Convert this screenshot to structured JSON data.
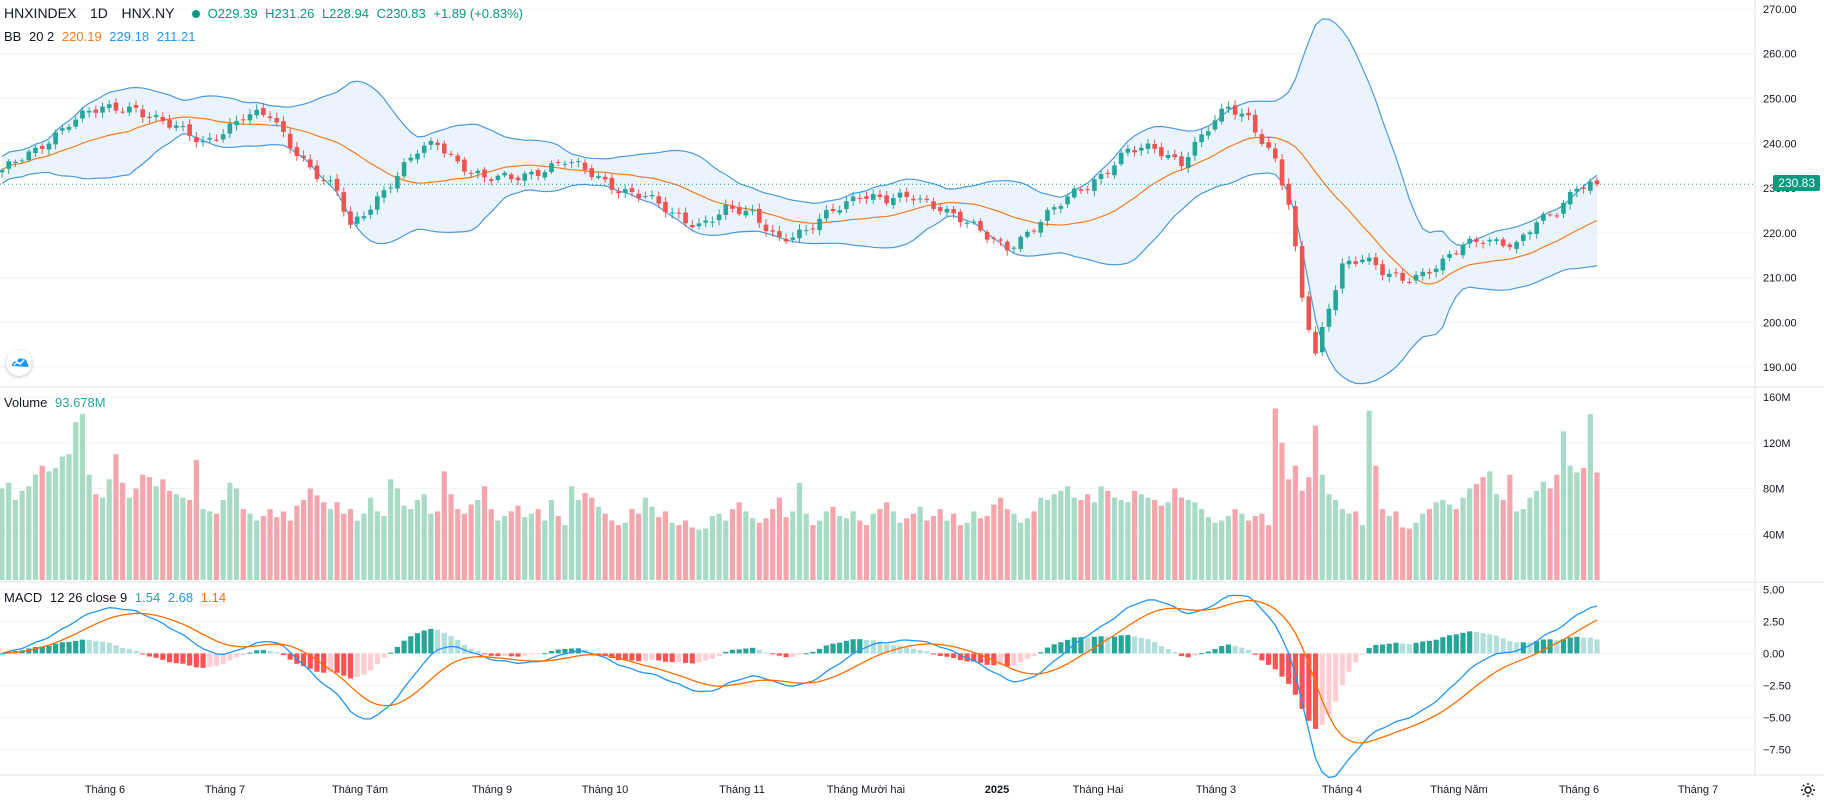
{
  "header": {
    "symbol": "HNXINDEX",
    "interval": "1D",
    "exchange": "HNX.NY",
    "open": "O229.39",
    "high": "H231.26",
    "low": "L228.94",
    "close": "C230.83",
    "change": "+1.89 (+0.83%)"
  },
  "bb_legend": {
    "name": "BB",
    "params": "20 2",
    "basis": "220.19",
    "upper": "229.18",
    "lower": "211.21"
  },
  "volume_legend": {
    "name": "Volume",
    "value": "93.678M"
  },
  "macd_legend": {
    "name": "MACD",
    "params": "12 26 close 9",
    "hist": "1.54",
    "macd": "2.68",
    "signal": "1.14"
  },
  "last_price_tag": "230.83",
  "colors": {
    "up": "#26a69a",
    "down": "#ef5350",
    "vol_up": "#a7dbc6",
    "vol_down": "#f5a6ad",
    "bb_band": "#4a9ae0",
    "bb_basis": "#f57c20",
    "bb_fill": "#e3f0fb",
    "macd_line": "#2196f3",
    "signal_line": "#ff6d00"
  },
  "chart_data": {
    "type": "candlestick",
    "price_axis": {
      "ticks": [
        "270.00",
        "260.00",
        "250.00",
        "240.00",
        "230.00",
        "220.00",
        "210.00",
        "200.00",
        "190.00"
      ],
      "ylim": [
        186,
        272
      ]
    },
    "volume_axis": {
      "ticks": [
        "160M",
        "120M",
        "80M",
        "40M"
      ],
      "ylim": [
        0,
        160
      ]
    },
    "macd_axis": {
      "ticks": [
        "5.00",
        "2.50",
        "0.00",
        "−2.50",
        "−5.00",
        "−7.50"
      ],
      "ylim": [
        -9.5,
        5.5
      ]
    },
    "x_labels": [
      "Tháng 6",
      "Tháng 7",
      "Tháng Tám",
      "Tháng 9",
      "Tháng 10",
      "Tháng 11",
      "Tháng Mười hai",
      "2025",
      "Tháng Hai",
      "Tháng 3",
      "Tháng 4",
      "Tháng Năm",
      "Tháng 6",
      "Tháng 7"
    ],
    "price_anchors": [
      [
        0,
        234
      ],
      [
        5,
        238
      ],
      [
        10,
        245
      ],
      [
        13,
        247
      ],
      [
        20,
        248
      ],
      [
        25,
        244
      ],
      [
        30,
        240
      ],
      [
        36,
        246
      ],
      [
        40,
        246
      ],
      [
        43,
        240
      ],
      [
        47,
        233
      ],
      [
        50,
        229
      ],
      [
        52,
        221
      ],
      [
        56,
        228
      ],
      [
        59,
        233
      ],
      [
        62,
        238
      ],
      [
        65,
        240
      ],
      [
        68,
        236
      ],
      [
        72,
        232
      ],
      [
        76,
        232
      ],
      [
        80,
        234
      ],
      [
        84,
        236
      ],
      [
        88,
        233
      ],
      [
        92,
        230
      ],
      [
        96,
        228
      ],
      [
        100,
        224
      ],
      [
        104,
        222
      ],
      [
        108,
        225
      ],
      [
        112,
        224
      ],
      [
        116,
        219
      ],
      [
        120,
        220
      ],
      [
        124,
        225
      ],
      [
        128,
        229
      ],
      [
        132,
        227
      ],
      [
        136,
        228
      ],
      [
        140,
        226
      ],
      [
        143,
        223
      ],
      [
        147,
        219
      ],
      [
        150,
        217
      ],
      [
        153,
        220
      ],
      [
        157,
        225
      ],
      [
        160,
        229
      ],
      [
        164,
        233
      ],
      [
        168,
        238
      ],
      [
        172,
        239
      ],
      [
        176,
        236
      ],
      [
        180,
        243
      ],
      [
        183,
        248
      ],
      [
        186,
        246
      ],
      [
        188,
        241
      ],
      [
        190,
        236
      ],
      [
        192,
        226
      ],
      [
        194,
        205
      ],
      [
        196,
        193
      ],
      [
        198,
        204
      ],
      [
        200,
        213
      ],
      [
        203,
        214
      ],
      [
        206,
        211
      ],
      [
        209,
        210
      ],
      [
        212,
        211
      ],
      [
        215,
        213
      ],
      [
        218,
        217
      ],
      [
        221,
        219
      ],
      [
        224,
        218
      ],
      [
        226,
        217
      ],
      [
        229,
        222
      ],
      [
        232,
        225
      ],
      [
        235,
        230.83
      ]
    ],
    "volume_values_M": [
      80,
      85,
      70,
      78,
      82,
      92,
      100,
      95,
      98,
      108,
      110,
      138,
      145,
      92,
      75,
      72,
      88,
      110,
      85,
      72,
      80,
      92,
      90,
      82,
      88,
      78,
      75,
      72,
      70,
      105,
      62,
      60,
      58,
      70,
      85,
      80,
      62,
      58,
      52,
      56,
      62,
      55,
      60,
      52,
      65,
      70,
      80,
      74,
      68,
      62,
      68,
      58,
      62,
      52,
      58,
      72,
      60,
      56,
      88,
      80,
      65,
      62,
      70,
      75,
      58,
      60,
      95,
      75,
      62,
      58,
      66,
      70,
      82,
      62,
      52,
      56,
      60,
      65,
      55,
      58,
      62,
      52,
      70,
      56,
      48,
      82,
      70,
      76,
      72,
      64,
      58,
      52,
      48,
      50,
      62,
      58,
      72,
      64,
      55,
      60,
      50,
      48,
      52,
      46,
      44,
      45,
      56,
      58,
      52,
      62,
      68,
      60,
      54,
      50,
      54,
      62,
      72,
      55,
      60,
      85,
      58,
      48,
      52,
      60,
      64,
      56,
      54,
      60,
      52,
      48,
      58,
      62,
      68,
      60,
      50,
      54,
      58,
      64,
      52,
      56,
      62,
      52,
      58,
      48,
      50,
      60,
      54,
      56,
      66,
      72,
      62,
      58,
      50,
      54,
      60,
      72,
      70,
      75,
      78,
      82,
      72,
      70,
      75,
      68,
      82,
      78,
      72,
      70,
      68,
      78,
      75,
      72,
      70,
      65,
      68,
      80,
      72,
      70,
      68,
      62,
      55,
      50,
      52,
      56,
      62,
      58,
      52,
      56,
      58,
      48,
      150,
      120,
      88,
      100,
      78,
      90,
      135,
      92,
      75,
      70,
      62,
      58,
      60,
      48,
      148,
      100,
      62,
      56,
      60,
      46,
      45,
      50,
      58,
      62,
      68,
      70,
      66,
      62,
      72,
      80,
      84,
      90,
      95,
      75,
      70,
      92,
      60,
      62,
      72,
      78,
      86,
      80,
      92,
      130,
      100,
      94,
      98,
      145,
      94
    ]
  }
}
